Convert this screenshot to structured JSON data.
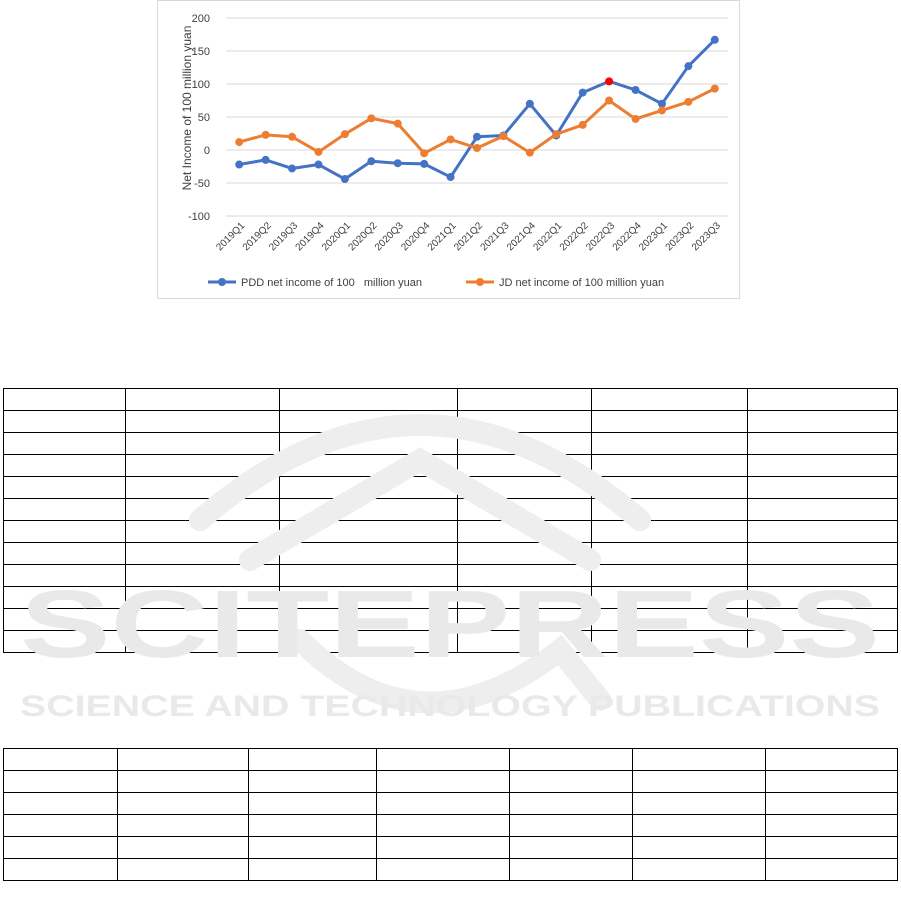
{
  "chart_data": {
    "type": "line",
    "title": "",
    "xlabel": "",
    "ylabel": "Net Income of 100 million yuan",
    "ylim": [
      -100,
      200
    ],
    "yticks": [
      -100,
      -50,
      0,
      50,
      100,
      150,
      200
    ],
    "grid": true,
    "legend_position": "bottom",
    "categories": [
      "2019Q1",
      "2019Q2",
      "2019Q3",
      "2019Q4",
      "2020Q1",
      "2020Q2",
      "2020Q3",
      "2020Q4",
      "2021Q1",
      "2021Q2",
      "2021Q3",
      "2021Q4",
      "2022Q1",
      "2022Q2",
      "2022Q3",
      "2022Q4",
      "2023Q1",
      "2023Q2",
      "2023Q3"
    ],
    "series": [
      {
        "name": "PDD net income of 100   million yuan",
        "color": "#4472c4",
        "values": [
          -22,
          -15,
          -28,
          -22,
          -44,
          -17,
          -20,
          -21,
          -41,
          20,
          22,
          70,
          22,
          87,
          104,
          91,
          70,
          127,
          167
        ]
      },
      {
        "name": "JD net income of 100 million yuan",
        "color": "#ed7d31",
        "values": [
          12,
          23,
          20,
          -3,
          24,
          48,
          40,
          -5,
          16,
          3,
          21,
          -4,
          24,
          38,
          75,
          47,
          60,
          73,
          93
        ]
      }
    ],
    "highlight": {
      "series": 0,
      "index": 14,
      "color": "#ff0000"
    }
  },
  "watermark": {
    "line1": "SCITEPRESS",
    "line2": "SCIENCE AND TECHNOLOGY PUBLICATIONS"
  }
}
